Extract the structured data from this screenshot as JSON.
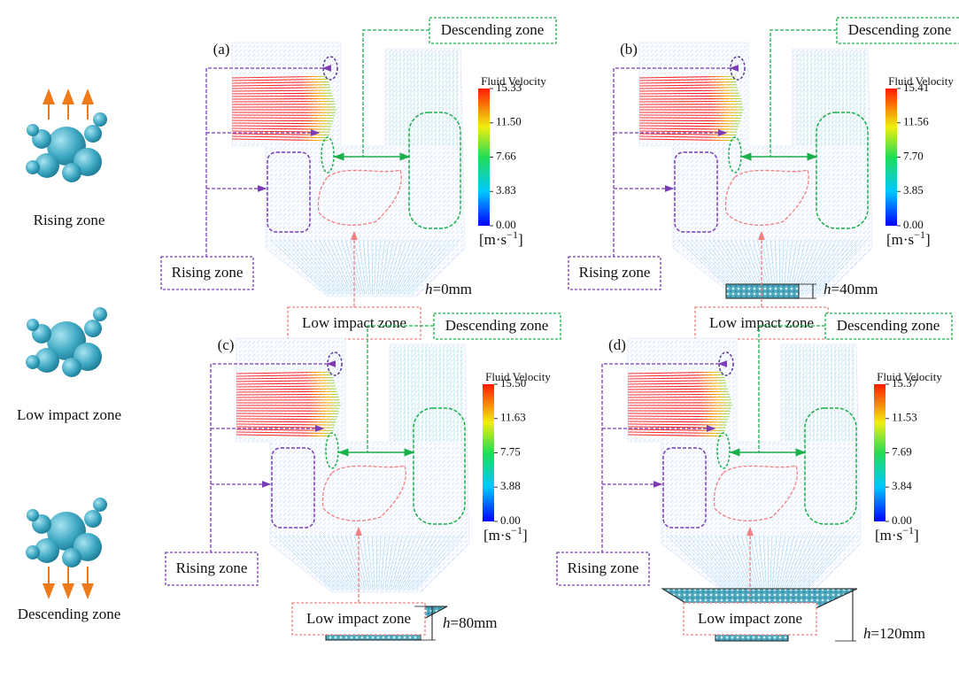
{
  "legend": [
    {
      "label": "Rising zone"
    },
    {
      "label": "Low impact zone"
    },
    {
      "label": "Descending zone"
    }
  ],
  "h_symbol": "h",
  "unit": {
    "open": "[m·s",
    "exp": "−1",
    "close": "]"
  },
  "colorbar_title": "Fluid Velocity",
  "panels": [
    {
      "label": "(a)",
      "descending": "Descending zone",
      "rising": "Rising zone",
      "low_impact": "Low impact zone",
      "ticks": [
        "15.33",
        "11.50",
        "7.66",
        "3.83",
        "0.00"
      ],
      "h_text": "=0mm"
    },
    {
      "label": "(b)",
      "descending": "Descending zone",
      "rising": "Rising zone",
      "low_impact": "Low impact zone",
      "ticks": [
        "15.41",
        "11.56",
        "7.70",
        "3.85",
        "0.00"
      ],
      "h_text": "=40mm"
    },
    {
      "label": "(c)",
      "descending": "Descending zone",
      "rising": "Rising zone",
      "low_impact": "Low impact zone",
      "ticks": [
        "15.50",
        "11.63",
        "7.75",
        "3.88",
        "0.00"
      ],
      "h_text": "=80mm"
    },
    {
      "label": "(d)",
      "descending": "Descending zone",
      "rising": "Rising zone",
      "low_impact": "Low impact zone",
      "ticks": [
        "15.37",
        "11.53",
        "7.69",
        "3.84",
        "0.00"
      ],
      "h_text": "=120mm"
    }
  ]
}
